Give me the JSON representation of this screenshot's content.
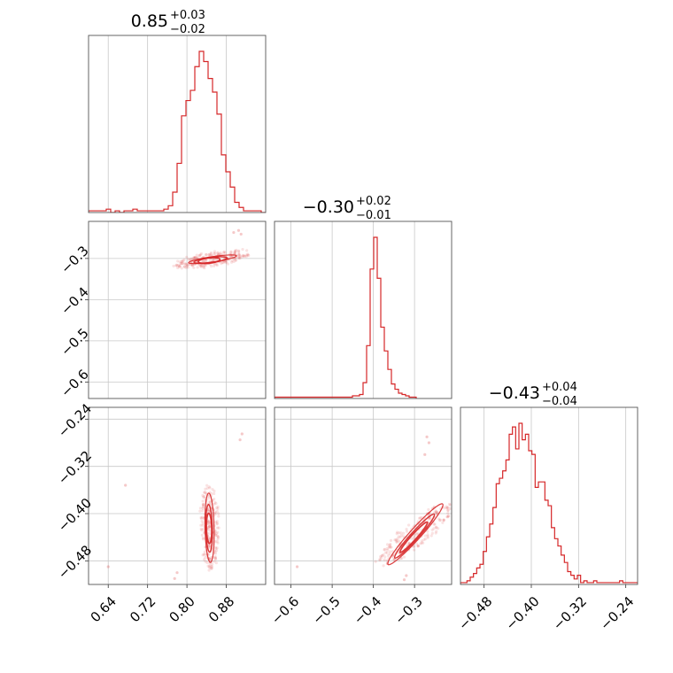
{
  "chart_data": {
    "type": "corner",
    "accent_color": "#d62728",
    "grid": true,
    "parameters": [
      {
        "title": {
          "main": "0.85",
          "sup": "+0.03",
          "sub": "−0.02"
        },
        "range": [
          0.6,
          0.96
        ],
        "ticks": [
          {
            "value": 0.64,
            "label": "0.64"
          },
          {
            "value": 0.72,
            "label": "0.72"
          },
          {
            "value": 0.8,
            "label": "0.80"
          },
          {
            "value": 0.88,
            "label": "0.88"
          }
        ],
        "histogram": {
          "start": 0.6,
          "width": 0.009,
          "counts": [
            1,
            1,
            1,
            1,
            2,
            0,
            1,
            0,
            1,
            1,
            2,
            1,
            1,
            1,
            1,
            1,
            1,
            2,
            4,
            12,
            29,
            57,
            66,
            72,
            86,
            95,
            89,
            79,
            71,
            58,
            34,
            24,
            15,
            6,
            3,
            1,
            1,
            1,
            1,
            0
          ]
        }
      },
      {
        "title": {
          "main": "−0.30",
          "sup": "+0.02",
          "sub": "−0.01"
        },
        "range": [
          -0.64,
          -0.21
        ],
        "ticks": [
          {
            "value": -0.6,
            "label": "−0.6"
          },
          {
            "value": -0.5,
            "label": "−0.5"
          },
          {
            "value": -0.4,
            "label": "−0.4"
          },
          {
            "value": -0.3,
            "label": "−0.3"
          }
        ],
        "histogram": {
          "start": -0.64,
          "width": 0.0086,
          "counts": [
            1,
            1,
            1,
            1,
            1,
            1,
            1,
            1,
            1,
            1,
            1,
            1,
            1,
            1,
            1,
            1,
            1,
            1,
            1,
            1,
            1,
            1,
            2,
            2,
            3,
            12,
            40,
            98,
            122,
            91,
            54,
            36,
            22,
            11,
            7,
            4,
            3,
            2,
            1,
            1
          ]
        }
      },
      {
        "title": {
          "main": "−0.43",
          "sup": "+0.04",
          "sub": "−0.04"
        },
        "range": [
          -0.52,
          -0.22
        ],
        "ticks": [
          {
            "value": -0.48,
            "label": "−0.48"
          },
          {
            "value": -0.4,
            "label": "−0.40"
          },
          {
            "value": -0.32,
            "label": "−0.32"
          },
          {
            "value": -0.24,
            "label": "−0.24"
          }
        ],
        "histogram": {
          "start": -0.52,
          "width": 0.0055,
          "counts": [
            1,
            1,
            2,
            4,
            6,
            9,
            11,
            18,
            26,
            33,
            42,
            55,
            58,
            62,
            68,
            82,
            86,
            74,
            88,
            79,
            82,
            73,
            71,
            53,
            56,
            56,
            46,
            43,
            31,
            25,
            21,
            16,
            12,
            7,
            5,
            3,
            5,
            1,
            2,
            1,
            1,
            2,
            1,
            1,
            1,
            1,
            1,
            1,
            1,
            2,
            1,
            1,
            1,
            1,
            1
          ]
        }
      }
    ],
    "contours": [
      {
        "x_param": 0,
        "y_param": 1,
        "levels": [
          {
            "cx": 0.845,
            "cy": -0.305,
            "rx": 0.026,
            "ry": 0.0045,
            "angle": 0.13
          },
          {
            "cx": 0.848,
            "cy": -0.304,
            "rx": 0.04,
            "ry": 0.0075,
            "angle": 0.15
          },
          {
            "cx": 0.852,
            "cy": -0.302,
            "rx": 0.058,
            "ry": 0.0115,
            "angle": 0.17
          }
        ],
        "outliers": [
          [
            0.905,
            -0.232
          ],
          [
            0.895,
            -0.237
          ],
          [
            0.8,
            -0.318
          ],
          [
            0.795,
            -0.32
          ],
          [
            0.788,
            -0.312
          ],
          [
            0.91,
            -0.241
          ]
        ]
      },
      {
        "x_param": 0,
        "y_param": 2,
        "levels": [
          {
            "cx": 0.845,
            "cy": -0.425,
            "rx": 0.028,
            "ry": 0.007,
            "angle": 1.6
          },
          {
            "cx": 0.845,
            "cy": -0.425,
            "rx": 0.044,
            "ry": 0.01,
            "angle": 1.6
          },
          {
            "cx": 0.846,
            "cy": -0.424,
            "rx": 0.064,
            "ry": 0.014,
            "angle": 1.6
          }
        ],
        "outliers": [
          [
            0.908,
            -0.275
          ],
          [
            0.912,
            -0.265
          ],
          [
            0.78,
            -0.5
          ],
          [
            0.775,
            -0.51
          ],
          [
            0.675,
            -0.352
          ],
          [
            0.64,
            -0.49
          ]
        ]
      },
      {
        "x_param": 1,
        "y_param": 2,
        "levels": [
          {
            "cx": -0.302,
            "cy": -0.44,
            "rx": 0.045,
            "ry": 0.008,
            "angle": 3.8
          },
          {
            "cx": -0.3,
            "cy": -0.438,
            "rx": 0.065,
            "ry": 0.012,
            "angle": 3.8
          },
          {
            "cx": -0.298,
            "cy": -0.435,
            "rx": 0.09,
            "ry": 0.017,
            "angle": 3.8
          }
        ],
        "outliers": [
          [
            -0.27,
            -0.27
          ],
          [
            -0.265,
            -0.28
          ],
          [
            -0.275,
            -0.3
          ],
          [
            -0.32,
            -0.505
          ],
          [
            -0.325,
            -0.512
          ],
          [
            -0.585,
            -0.49
          ]
        ]
      }
    ]
  }
}
